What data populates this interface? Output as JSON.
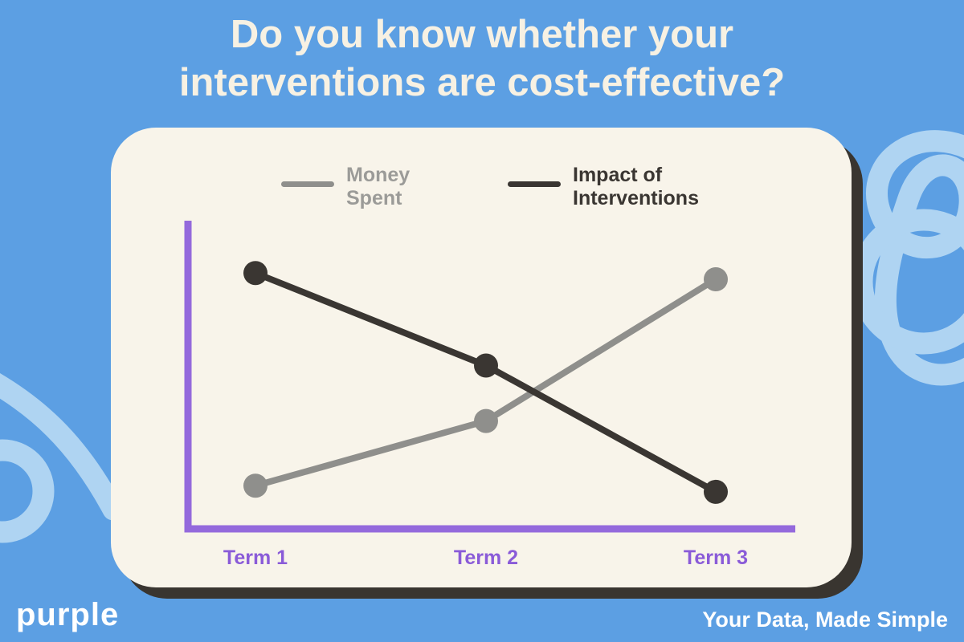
{
  "page": {
    "background_color": "#5c9fe3",
    "title_line1": "Do you know whether your",
    "title_line2": "interventions are cost-effective?",
    "title_color": "#f7f1e3",
    "logo_text": "purple",
    "tagline": "Your Data, Made Simple",
    "decor_squiggle_color": "#afd4f2"
  },
  "card": {
    "background_color": "#f8f4ea",
    "shadow_color": "#393530"
  },
  "legend": {
    "money": {
      "line1": "Money",
      "line2": "Spent",
      "text_color": "#9b9b98",
      "swatch_color": "#8f8f8c"
    },
    "impact": {
      "line1": "Impact of",
      "line2": "Interventions",
      "text_color": "#3a3632",
      "swatch_color": "#3a3632"
    }
  },
  "chart_data": {
    "type": "line",
    "categories": [
      "Term 1",
      "Term 2",
      "Term 3"
    ],
    "series": [
      {
        "name": "Money Spent",
        "values": [
          1.4,
          3.5,
          8.1
        ],
        "color": "#8f8f8c"
      },
      {
        "name": "Impact of Interventions",
        "values": [
          8.3,
          5.3,
          1.2
        ],
        "color": "#3a3632"
      }
    ],
    "ylim": [
      0,
      10
    ],
    "xlabel": "",
    "ylabel": "",
    "axis_color": "#9469dc",
    "tick_label_color": "#8a5bd8",
    "grid": false,
    "legend_position": "top-inside",
    "axes_shown": [
      "left",
      "bottom"
    ],
    "value_labels_shown": false
  }
}
